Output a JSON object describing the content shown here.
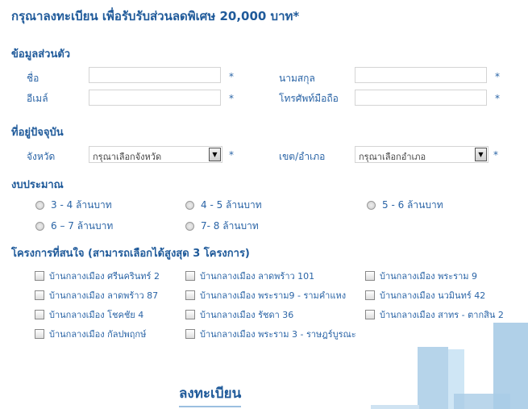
{
  "title": "กรุณาลงทะเบียน เพื่อรับรับส่วนลดพิเศษ 20,000 บาท*",
  "personal": {
    "heading": "ข้อมูลส่วนตัว",
    "first_name": "ชื่อ",
    "last_name": "นามสกุล",
    "email": "อีเมล์",
    "phone": "โทรศัพท์มือถือ",
    "required": "*"
  },
  "address": {
    "heading": "ที่อยู่ปัจจุบัน",
    "province_label": "จังหวัด",
    "province_value": "กรุณาเลือกจังหวัด",
    "district_label": "เขต/อำเภอ",
    "district_value": "กรุณาเลือกอำเภอ"
  },
  "budget": {
    "heading": "งบประมาณ",
    "options": [
      "3 - 4 ล้านบาท",
      "4 - 5 ล้านบาท",
      "5 - 6 ล้านบาท",
      "6 – 7 ล้านบาท",
      "7- 8 ล้านบาท"
    ]
  },
  "projects": {
    "heading": "โครงการที่สนใจ (สามารถเลือกได้สูงสุด 3 โครงการ)",
    "options": [
      "บ้านกลางเมือง ศรีนครินทร์ 2",
      "บ้านกลางเมือง ลาดพร้าว 101",
      "บ้านกลางเมือง พระราม 9",
      "บ้านกลางเมือง ลาดพร้าว 87",
      "บ้านกลางเมือง พระราม9 - รามคำแหง",
      "บ้านกลางเมือง นวมินทร์ 42",
      "บ้านกลางเมือง โชคชัย 4",
      "บ้านกลางเมือง รัชดา 36",
      "บ้านกลางเมือง สาทร - ตากสิน 2",
      "บ้านกลางเมือง กัลปพฤกษ์",
      "บ้านกลางเมือง พระราม 3 - ราษฎร์บูรณะ"
    ]
  },
  "submit_label": "ลงทะเบียน",
  "colors": {
    "heading": "#1f5a9a",
    "label": "#2a64a6"
  }
}
